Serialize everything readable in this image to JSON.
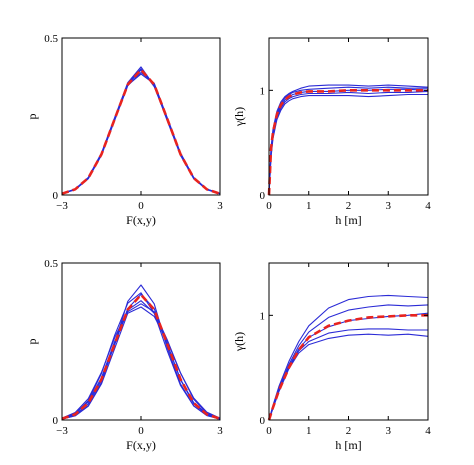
{
  "chart_data": [
    {
      "type": "line",
      "xlabel": "F(x,y)",
      "ylabel": "p",
      "xlim": [
        -3,
        3
      ],
      "ylim": [
        0,
        0.5
      ],
      "xticks": [
        "−3",
        "0",
        "3"
      ],
      "yticks": [
        "0",
        "0.5"
      ],
      "grid": false,
      "x": [
        -3,
        -2.5,
        -2,
        -1.5,
        -1,
        -0.5,
        0,
        0.5,
        1,
        1.5,
        2,
        2.5,
        3
      ],
      "series": [
        {
          "values": [
            0.004,
            0.018,
            0.054,
            0.13,
            0.242,
            0.352,
            0.398,
            0.352,
            0.242,
            0.13,
            0.054,
            0.018,
            0.004
          ]
        },
        {
          "values": [
            0.005,
            0.019,
            0.056,
            0.134,
            0.247,
            0.358,
            0.408,
            0.348,
            0.236,
            0.126,
            0.052,
            0.017,
            0.004
          ]
        },
        {
          "values": [
            0.004,
            0.017,
            0.052,
            0.127,
            0.238,
            0.348,
            0.39,
            0.356,
            0.246,
            0.134,
            0.056,
            0.019,
            0.005
          ]
        },
        {
          "values": [
            0.004,
            0.018,
            0.055,
            0.132,
            0.244,
            0.356,
            0.402,
            0.345,
            0.24,
            0.131,
            0.055,
            0.018,
            0.004
          ]
        },
        {
          "values": [
            0.004,
            0.018,
            0.053,
            0.128,
            0.24,
            0.35,
            0.385,
            0.354,
            0.244,
            0.129,
            0.053,
            0.018,
            0.004
          ]
        }
      ],
      "reference": {
        "values": [
          0.004,
          0.018,
          0.054,
          0.13,
          0.242,
          0.352,
          0.399,
          0.352,
          0.242,
          0.13,
          0.054,
          0.018,
          0.004
        ]
      }
    },
    {
      "type": "line",
      "xlabel": "h [m]",
      "ylabel": "γ(h)",
      "xlim": [
        0,
        4
      ],
      "ylim": [
        0,
        1.5
      ],
      "xticks": [
        "0",
        "1",
        "2",
        "3",
        "4"
      ],
      "yticks": [
        "0",
        "1"
      ],
      "grid": false,
      "x": [
        0,
        0.05,
        0.1,
        0.2,
        0.3,
        0.4,
        0.5,
        0.6,
        0.8,
        1,
        1.5,
        2,
        2.5,
        3,
        3.5,
        4
      ],
      "series": [
        {
          "values": [
            0,
            0.45,
            0.63,
            0.8,
            0.89,
            0.94,
            0.97,
            0.99,
            1.02,
            1.04,
            1.05,
            1.05,
            1.04,
            1.05,
            1.04,
            1.03
          ]
        },
        {
          "values": [
            0,
            0.42,
            0.6,
            0.78,
            0.87,
            0.93,
            0.96,
            0.98,
            1.0,
            1.01,
            1.02,
            1.03,
            1.02,
            1.03,
            1.02,
            1.02
          ]
        },
        {
          "values": [
            0,
            0.4,
            0.58,
            0.76,
            0.85,
            0.91,
            0.94,
            0.96,
            0.98,
            0.99,
            0.99,
            1.0,
            1.0,
            1.01,
            1.01,
            1.0
          ]
        },
        {
          "values": [
            0,
            0.38,
            0.56,
            0.74,
            0.83,
            0.89,
            0.92,
            0.94,
            0.96,
            0.97,
            0.97,
            0.98,
            0.97,
            0.98,
            0.98,
            0.99
          ]
        },
        {
          "values": [
            0,
            0.36,
            0.54,
            0.72,
            0.81,
            0.87,
            0.9,
            0.92,
            0.94,
            0.95,
            0.95,
            0.95,
            0.94,
            0.95,
            0.96,
            0.96
          ]
        }
      ],
      "reference": {
        "values": [
          0,
          0.44,
          0.6,
          0.77,
          0.86,
          0.91,
          0.94,
          0.96,
          0.98,
          0.99,
          0.99,
          1.0,
          1.0,
          1.0,
          1.0,
          1.0
        ]
      }
    },
    {
      "type": "line",
      "xlabel": "F(x,y)",
      "ylabel": "p",
      "xlim": [
        -3,
        3
      ],
      "ylim": [
        0,
        0.5
      ],
      "xticks": [
        "−3",
        "0",
        "3"
      ],
      "yticks": [
        "0",
        "0.5"
      ],
      "grid": false,
      "x": [
        -3,
        -2.5,
        -2,
        -1.5,
        -1,
        -0.5,
        0,
        0.5,
        1,
        1.5,
        2,
        2.5,
        3
      ],
      "series": [
        {
          "values": [
            0.003,
            0.014,
            0.046,
            0.12,
            0.245,
            0.378,
            0.43,
            0.37,
            0.23,
            0.115,
            0.045,
            0.014,
            0.003
          ]
        },
        {
          "values": [
            0.004,
            0.02,
            0.062,
            0.148,
            0.27,
            0.372,
            0.405,
            0.34,
            0.22,
            0.11,
            0.045,
            0.015,
            0.004
          ]
        },
        {
          "values": [
            0.006,
            0.024,
            0.068,
            0.152,
            0.262,
            0.35,
            0.38,
            0.34,
            0.24,
            0.13,
            0.055,
            0.02,
            0.005
          ]
        },
        {
          "values": [
            0.003,
            0.013,
            0.044,
            0.115,
            0.228,
            0.34,
            0.36,
            0.33,
            0.25,
            0.15,
            0.07,
            0.025,
            0.006
          ]
        },
        {
          "values": [
            0.005,
            0.022,
            0.058,
            0.135,
            0.25,
            0.345,
            0.37,
            0.345,
            0.255,
            0.15,
            0.066,
            0.022,
            0.005
          ]
        },
        {
          "values": [
            0.004,
            0.017,
            0.052,
            0.128,
            0.24,
            0.355,
            0.4,
            0.355,
            0.24,
            0.128,
            0.052,
            0.017,
            0.004
          ]
        }
      ],
      "reference": {
        "values": [
          0.004,
          0.018,
          0.054,
          0.13,
          0.242,
          0.352,
          0.399,
          0.352,
          0.242,
          0.13,
          0.054,
          0.018,
          0.004
        ]
      }
    },
    {
      "type": "line",
      "xlabel": "h [m]",
      "ylabel": "γ(h)",
      "xlim": [
        0,
        4
      ],
      "ylim": [
        0,
        1.5
      ],
      "xticks": [
        "0",
        "1",
        "2",
        "3",
        "4"
      ],
      "yticks": [
        "0",
        "1"
      ],
      "grid": false,
      "x": [
        0,
        0.1,
        0.25,
        0.5,
        0.75,
        1,
        1.5,
        2,
        2.5,
        3,
        3.5,
        4
      ],
      "series": [
        {
          "values": [
            0,
            0.14,
            0.32,
            0.56,
            0.75,
            0.9,
            1.07,
            1.15,
            1.18,
            1.19,
            1.18,
            1.17
          ]
        },
        {
          "values": [
            0,
            0.13,
            0.3,
            0.53,
            0.71,
            0.84,
            0.98,
            1.05,
            1.08,
            1.1,
            1.09,
            1.1
          ]
        },
        {
          "values": [
            0,
            0.12,
            0.29,
            0.51,
            0.68,
            0.79,
            0.89,
            0.95,
            0.97,
            0.99,
            1.0,
            1.02
          ]
        },
        {
          "values": [
            0,
            0.12,
            0.28,
            0.5,
            0.66,
            0.75,
            0.83,
            0.86,
            0.87,
            0.87,
            0.86,
            0.86
          ]
        },
        {
          "values": [
            0,
            0.11,
            0.27,
            0.49,
            0.64,
            0.72,
            0.78,
            0.81,
            0.82,
            0.81,
            0.82,
            0.8
          ]
        }
      ],
      "reference": {
        "values": [
          0,
          0.12,
          0.28,
          0.5,
          0.67,
          0.79,
          0.9,
          0.95,
          0.98,
          0.99,
          1.0,
          1.0
        ]
      }
    }
  ],
  "colors": {
    "realization": "#2b2bd6",
    "reference": "#e8231f"
  }
}
